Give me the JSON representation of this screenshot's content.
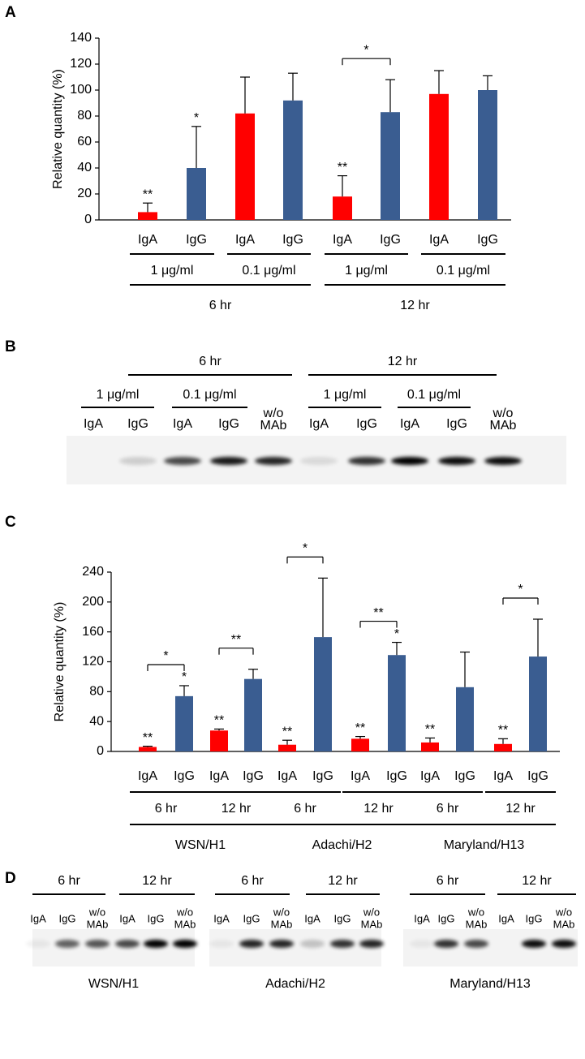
{
  "panel_labels": [
    "A",
    "B",
    "C",
    "D"
  ],
  "chart_data": [
    {
      "type": "bar",
      "y_label": "Relative quantity (%)",
      "categories": [
        "IgA",
        "IgG",
        "IgA",
        "IgG",
        "IgA",
        "IgG",
        "IgA",
        "IgG"
      ],
      "values": [
        6,
        40,
        82,
        92,
        18,
        83,
        97,
        100
      ],
      "errors": [
        7,
        32,
        28,
        21,
        16,
        25,
        18,
        11
      ],
      "bar_colors": [
        "#ff0000",
        "#3a5d91",
        "#ff0000",
        "#3a5d91",
        "#ff0000",
        "#3a5d91",
        "#ff0000",
        "#3a5d91"
      ],
      "ylim": [
        0,
        140
      ],
      "yticks": [
        0,
        20,
        40,
        60,
        80,
        100,
        120,
        140
      ],
      "annotations": [
        {
          "text": "**",
          "bar": 0
        },
        {
          "text": "*",
          "bar": 1
        },
        {
          "text": "**",
          "bar": 4
        }
      ],
      "brackets": [
        {
          "text": "*",
          "from": 4,
          "to": 5
        }
      ],
      "groups": [
        {
          "label": "1 μg/ml",
          "from": 0,
          "to": 1
        },
        {
          "label": "0.1 μg/ml",
          "from": 2,
          "to": 3
        },
        {
          "label": "1 μg/ml",
          "from": 4,
          "to": 5
        },
        {
          "label": "0.1 μg/ml",
          "from": 6,
          "to": 7
        }
      ],
      "supergroups": [
        {
          "label": "6 hr",
          "from": 0,
          "to": 3
        },
        {
          "label": "12 hr",
          "from": 4,
          "to": 7
        }
      ]
    },
    {
      "type": "bar",
      "y_label": "Relative quantity (%)",
      "categories": [
        "IgA",
        "IgG",
        "IgA",
        "IgG",
        "IgA",
        "IgG",
        "IgA",
        "IgG",
        "IgA",
        "IgG",
        "IgA",
        "IgG"
      ],
      "values": [
        6,
        74,
        28,
        97,
        9,
        153,
        17,
        129,
        12,
        86,
        10,
        127
      ],
      "errors": [
        1,
        14,
        2,
        13,
        6,
        79,
        3,
        17,
        6,
        47,
        7,
        50
      ],
      "bar_colors": [
        "#ff0000",
        "#3a5d91",
        "#ff0000",
        "#3a5d91",
        "#ff0000",
        "#3a5d91",
        "#ff0000",
        "#3a5d91",
        "#ff0000",
        "#3a5d91",
        "#ff0000",
        "#3a5d91"
      ],
      "ylim": [
        0,
        240
      ],
      "yticks": [
        0,
        40,
        80,
        120,
        160,
        200,
        240
      ],
      "annotations": [
        {
          "text": "**",
          "bar": 0
        },
        {
          "text": "*",
          "bar": 1
        },
        {
          "text": "**",
          "bar": 2
        },
        {
          "text": "**",
          "bar": 4
        },
        {
          "text": "**",
          "bar": 6
        },
        {
          "text": "*",
          "bar": 7
        },
        {
          "text": "**",
          "bar": 8
        },
        {
          "text": "**",
          "bar": 10
        }
      ],
      "brackets": [
        {
          "text": "*",
          "from": 0,
          "to": 1
        },
        {
          "text": "**",
          "from": 2,
          "to": 3
        },
        {
          "text": "*",
          "from": 4,
          "to": 5
        },
        {
          "text": "**",
          "from": 6,
          "to": 7
        },
        {
          "text": "*",
          "from": 10,
          "to": 11
        }
      ],
      "groups": [
        {
          "label": "6 hr",
          "from": 0,
          "to": 1
        },
        {
          "label": "12 hr",
          "from": 2,
          "to": 3
        },
        {
          "label": "6 hr",
          "from": 4,
          "to": 5
        },
        {
          "label": "12 hr",
          "from": 6,
          "to": 7
        },
        {
          "label": "6 hr",
          "from": 8,
          "to": 9
        },
        {
          "label": "12 hr",
          "from": 10,
          "to": 11
        }
      ],
      "supergroups": [
        {
          "label": "WSN/H1",
          "from": 0,
          "to": 3
        },
        {
          "label": "Adachi/H2",
          "from": 4,
          "to": 7
        },
        {
          "label": "Maryland/H13",
          "from": 8,
          "to": 11
        }
      ]
    }
  ],
  "blot_b": {
    "top_groups": [
      "6 hr",
      "12 hr"
    ],
    "sub_groups": [
      "1 μg/ml",
      "0.1 μg/ml",
      "1 μg/ml",
      "0.1 μg/ml"
    ],
    "lanes": [
      "IgA",
      "IgG",
      "IgA",
      "IgG",
      [
        "w/o",
        "MAb"
      ],
      "IgA",
      "IgG",
      "IgA",
      "IgG",
      [
        "w/o",
        "MAb"
      ]
    ]
  },
  "blot_d": [
    {
      "strain": "WSN/H1",
      "groups": [
        "6 hr",
        "12 hr"
      ],
      "lanes": [
        "IgA",
        "IgG",
        [
          "w/o",
          "MAb"
        ],
        "IgA",
        "IgG",
        [
          "w/o",
          "MAb"
        ]
      ]
    },
    {
      "strain": "Adachi/H2",
      "groups": [
        "6 hr",
        "12 hr"
      ],
      "lanes": [
        "IgA",
        "IgG",
        [
          "w/o",
          "MAb"
        ],
        "IgA",
        "IgG",
        [
          "w/o",
          "MAb"
        ]
      ]
    },
    {
      "strain": "Maryland/H13",
      "groups": [
        "6 hr",
        "12 hr"
      ],
      "lanes": [
        "IgA",
        "IgG",
        [
          "w/o",
          "MAb"
        ],
        "IgA",
        "IgG",
        [
          "w/o",
          "MAb"
        ]
      ]
    }
  ]
}
